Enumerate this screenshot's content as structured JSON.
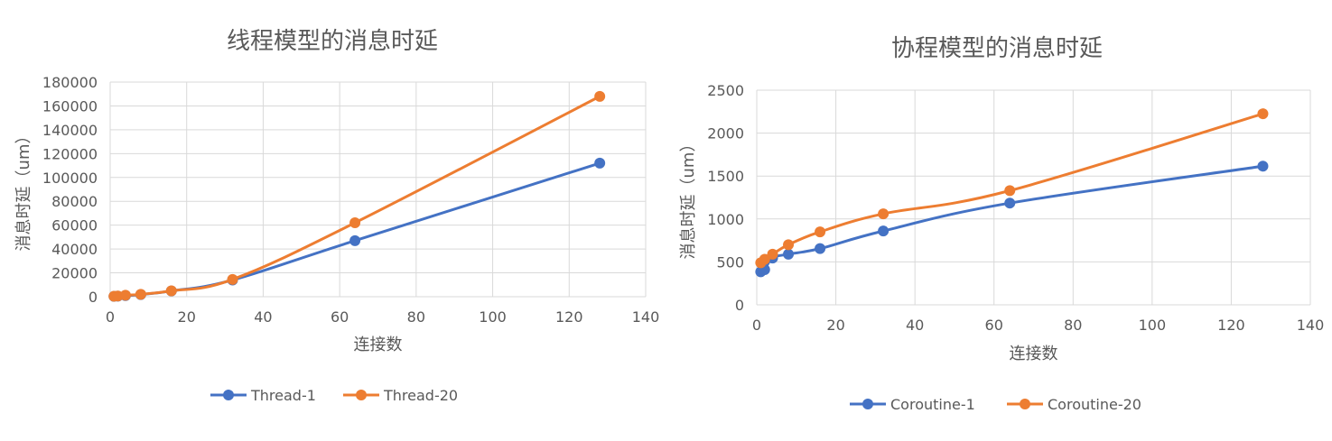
{
  "charts": [
    {
      "type": "line",
      "title": "线程模型的消息时延",
      "xlabel": "连接数",
      "ylabel": "消息时延（um）",
      "xlim": [
        0,
        140
      ],
      "xticks": [
        0,
        20,
        40,
        60,
        80,
        100,
        120,
        140
      ],
      "ylim": [
        0,
        180000
      ],
      "yticks": [
        0,
        20000,
        40000,
        60000,
        80000,
        100000,
        120000,
        140000,
        160000,
        180000
      ],
      "grid": true,
      "legend": "bottom",
      "series": [
        {
          "name": "Thread-1",
          "color": "#4472c4",
          "points": [
            [
              1,
              300
            ],
            [
              2,
              500
            ],
            [
              4,
              900
            ],
            [
              8,
              1800
            ],
            [
              16,
              4800
            ],
            [
              32,
              14000
            ],
            [
              64,
              47000
            ],
            [
              128,
              112000
            ]
          ]
        },
        {
          "name": "Thread-20",
          "color": "#ed7d31",
          "points": [
            [
              1,
              400
            ],
            [
              2,
              600
            ],
            [
              4,
              1200
            ],
            [
              8,
              2000
            ],
            [
              16,
              4900
            ],
            [
              32,
              14500
            ],
            [
              64,
              62000
            ],
            [
              128,
              168000
            ]
          ]
        }
      ]
    },
    {
      "type": "line",
      "title": "协程模型的消息时延",
      "xlabel": "连接数",
      "ylabel": "消息时延（um）",
      "xlim": [
        0,
        140
      ],
      "xticks": [
        0,
        20,
        40,
        60,
        80,
        100,
        120,
        140
      ],
      "ylim": [
        0,
        2500
      ],
      "yticks": [
        0,
        500,
        1000,
        1500,
        2000,
        2500
      ],
      "grid": true,
      "legend": "bottom",
      "series": [
        {
          "name": "Coroutine-1",
          "color": "#4472c4",
          "points": [
            [
              1,
              385
            ],
            [
              2,
              410
            ],
            [
              4,
              545
            ],
            [
              8,
              590
            ],
            [
              16,
              655
            ],
            [
              32,
              860
            ],
            [
              64,
              1185
            ],
            [
              128,
              1615
            ]
          ]
        },
        {
          "name": "Coroutine-20",
          "color": "#ed7d31",
          "points": [
            [
              1,
              490
            ],
            [
              2,
              530
            ],
            [
              4,
              590
            ],
            [
              8,
              700
            ],
            [
              16,
              850
            ],
            [
              32,
              1060
            ],
            [
              64,
              1330
            ],
            [
              128,
              2225
            ]
          ]
        }
      ]
    }
  ]
}
